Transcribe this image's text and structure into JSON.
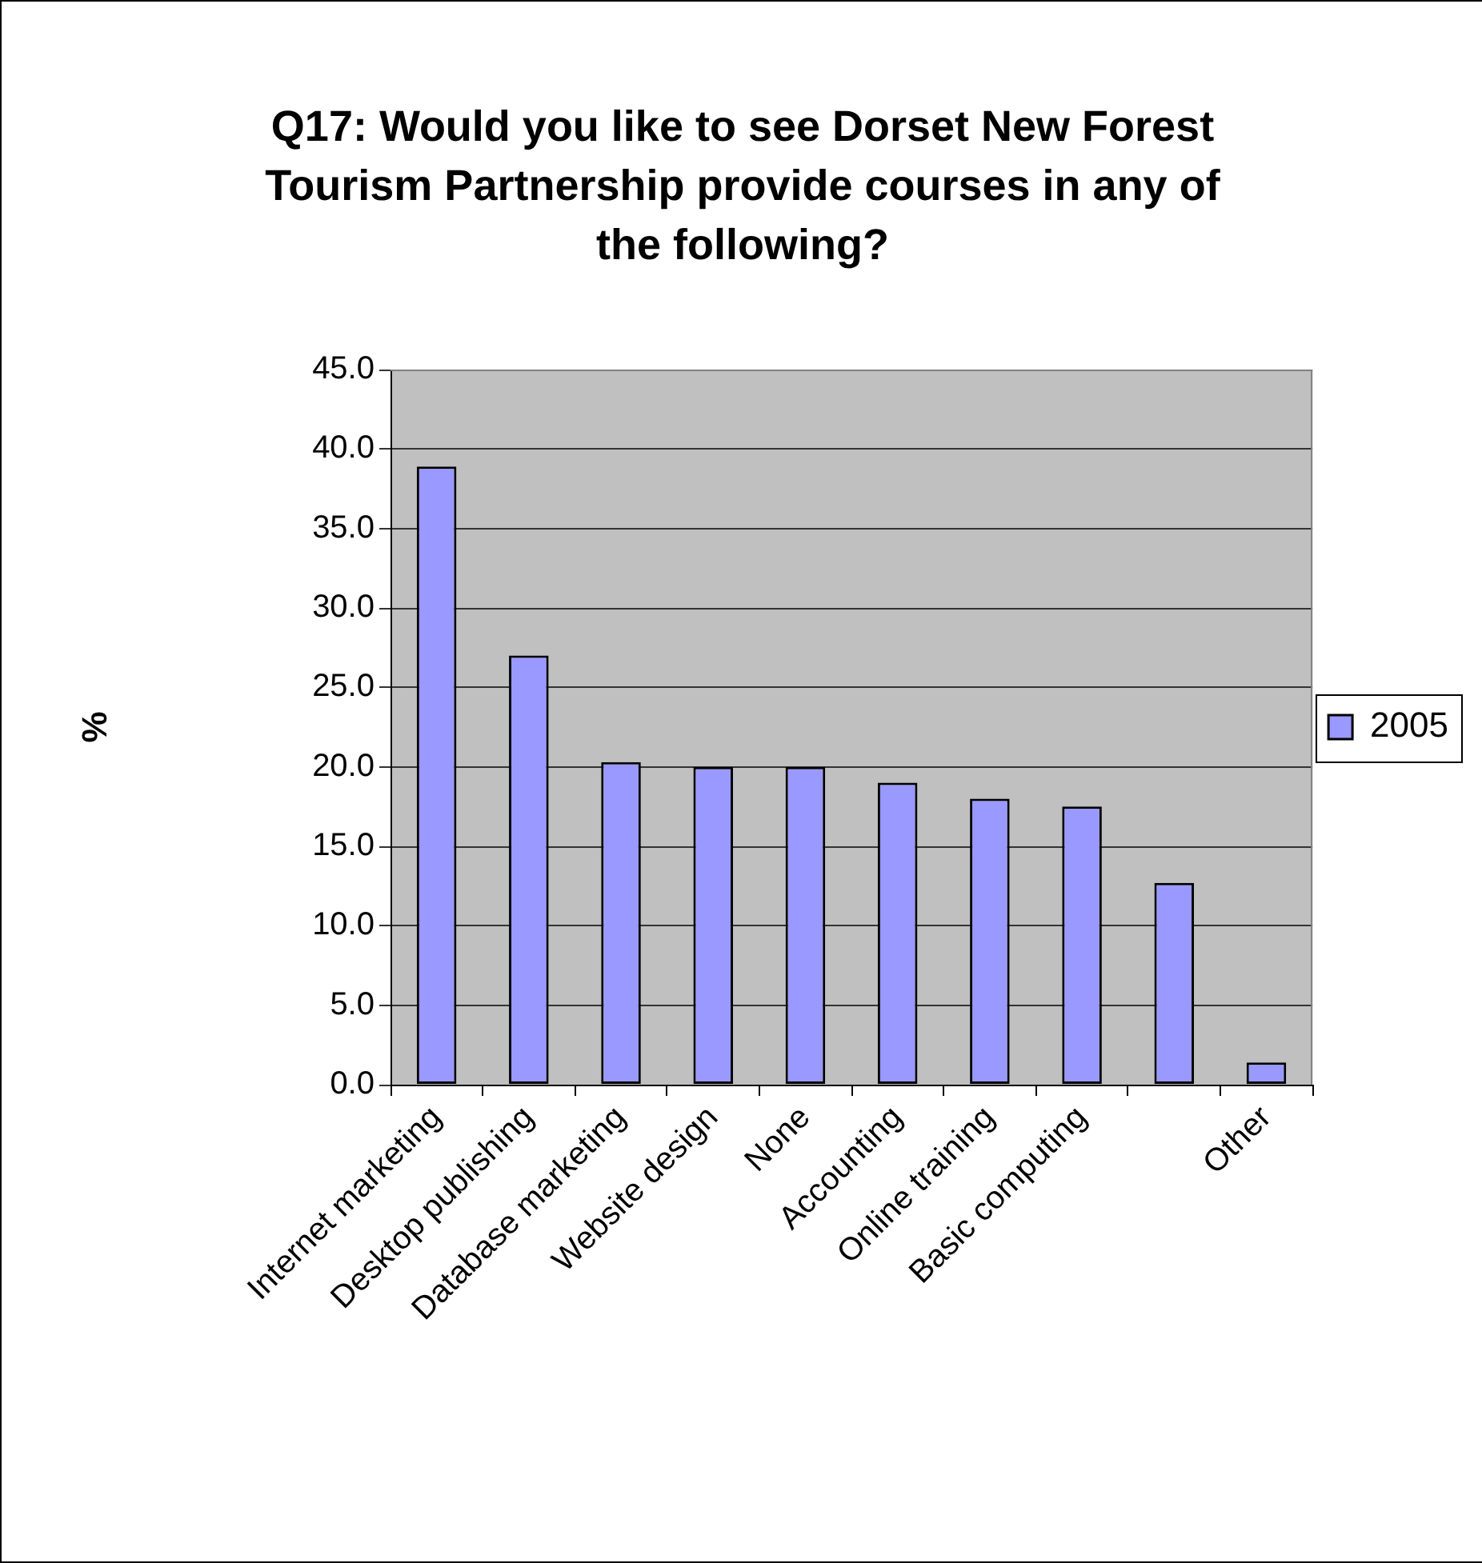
{
  "chart_data": {
    "type": "bar",
    "title": "Q17: Would you like to see Dorset New Forest Tourism Partnership provide courses in any of the following?",
    "ylabel": "%",
    "categories": [
      "Internet marketing",
      "Desktop publishing",
      "Database marketing",
      "Website design",
      "None",
      "Accounting",
      "Online training",
      "Basic computing",
      null,
      "Other"
    ],
    "series": [
      {
        "name": "2005",
        "color": "#9999ff",
        "values": [
          38.9,
          27.0,
          20.3,
          20.0,
          20.0,
          19.0,
          18.0,
          17.5,
          12.7,
          1.4
        ]
      }
    ],
    "ylim": [
      0,
      45
    ],
    "yticks": [
      {
        "value": 0,
        "label": "0.0"
      },
      {
        "value": 5,
        "label": "5.0"
      },
      {
        "value": 10,
        "label": "10.0"
      },
      {
        "value": 15,
        "label": "15.0"
      },
      {
        "value": 20,
        "label": "20.0"
      },
      {
        "value": 25,
        "label": "25.0"
      },
      {
        "value": 30,
        "label": "30.0"
      },
      {
        "value": 35,
        "label": "35.0"
      },
      {
        "value": 40,
        "label": "40.0"
      },
      {
        "value": 45,
        "label": "45.0"
      }
    ],
    "grid": "y",
    "legend": "right"
  }
}
